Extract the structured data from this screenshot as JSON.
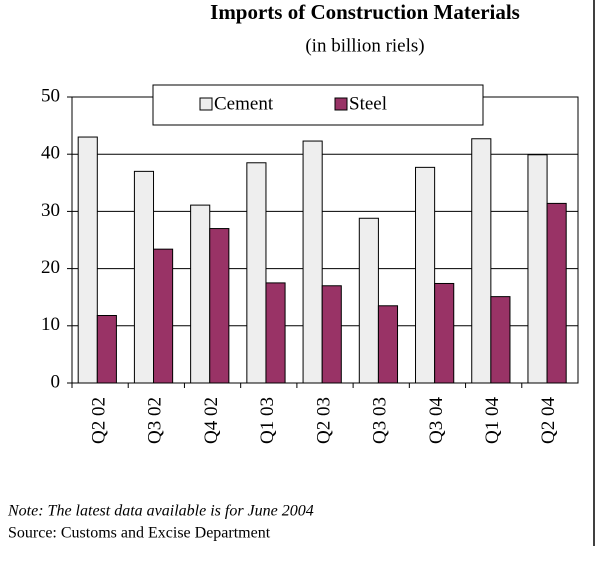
{
  "chart_data": {
    "type": "bar",
    "title": "Imports of Construction Materials",
    "subtitle": "(in billion riels)",
    "categories": [
      "Q2 02",
      "Q3 02",
      "Q4 02",
      "Q1 03",
      "Q2 03",
      "Q3 03",
      "Q3 04",
      "Q1 04",
      "Q2 04"
    ],
    "series": [
      {
        "name": "Cement",
        "color": "#eeeeee",
        "values": [
          43,
          37,
          31.1,
          38.5,
          42.3,
          28.8,
          37.7,
          42.7,
          39.9
        ]
      },
      {
        "name": "Steel",
        "color": "#993366",
        "values": [
          11.8,
          23.4,
          27,
          17.5,
          17,
          13.5,
          17.4,
          15.1,
          31.4
        ]
      }
    ],
    "ylim": [
      0,
      50
    ],
    "yticks": [
      0,
      10,
      20,
      30,
      40,
      50
    ],
    "grid": true,
    "legend": "top",
    "note": "Note: The latest data available is for June 2004",
    "source": "Source: Customs and Excise Department"
  }
}
